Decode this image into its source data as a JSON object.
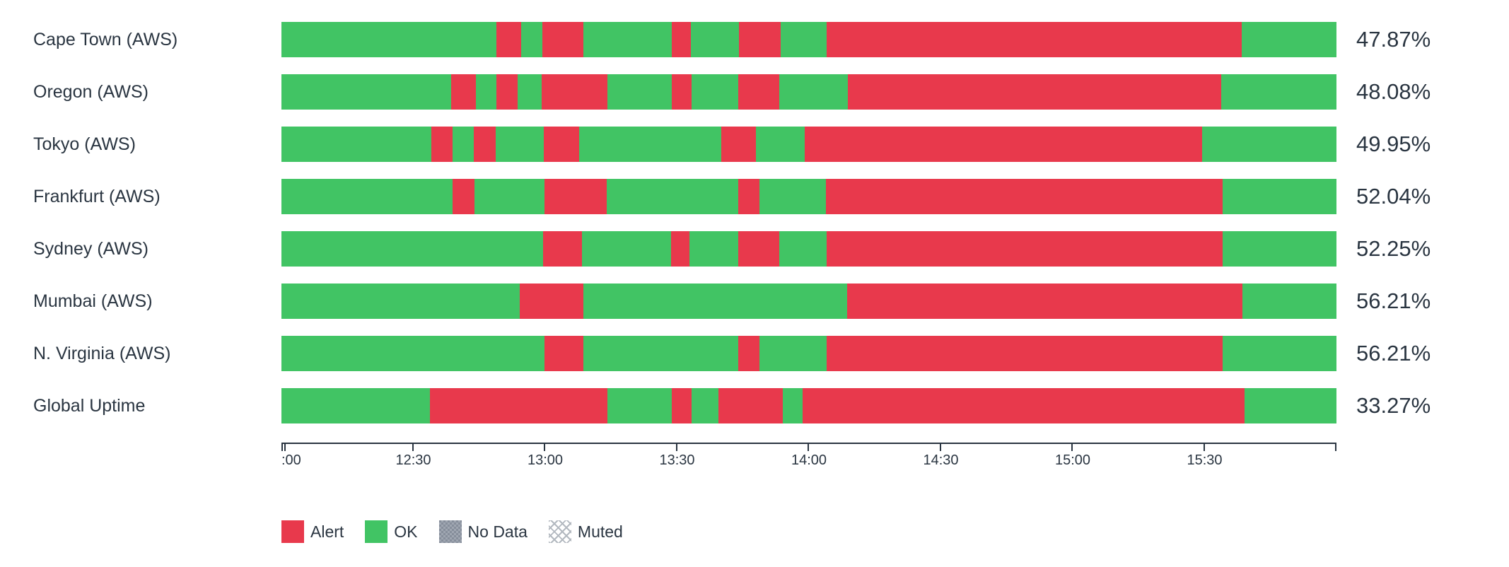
{
  "colors": {
    "alert": "#e8394c",
    "ok": "#41c464",
    "no_data": "#8a93a0",
    "muted": "#b3b9c0",
    "text": "#2a3541",
    "axis": "#2a3541",
    "background": "#ffffff"
  },
  "legend": {
    "items": [
      {
        "id": "alert",
        "label": "Alert"
      },
      {
        "id": "ok",
        "label": "OK"
      },
      {
        "id": "no_data",
        "label": "No Data"
      },
      {
        "id": "muted",
        "label": "Muted"
      }
    ]
  },
  "chart_data": {
    "type": "status-timeline",
    "time_range": {
      "start": "12:00",
      "end": "16:00"
    },
    "axis_tick_labels": [
      ":00",
      "12:30",
      "13:00",
      "13:30",
      "14:00",
      "14:30",
      "15:00",
      "15:30",
      ""
    ],
    "statuses": [
      "ok",
      "alert",
      "no_data",
      "muted"
    ],
    "rows": [
      {
        "label": "Cape Town (AWS)",
        "uptime": "47.87%",
        "segments": [
          {
            "status": "ok",
            "start": "12:00",
            "end": "12:49",
            "width_pct": 20.4
          },
          {
            "status": "alert",
            "start": "12:49",
            "end": "12:54",
            "width_pct": 2.3
          },
          {
            "status": "ok",
            "start": "12:54",
            "end": "12:59",
            "width_pct": 2.0
          },
          {
            "status": "alert",
            "start": "12:59",
            "end": "13:09",
            "width_pct": 3.9
          },
          {
            "status": "ok",
            "start": "13:09",
            "end": "13:29",
            "width_pct": 8.4
          },
          {
            "status": "alert",
            "start": "13:29",
            "end": "13:33",
            "width_pct": 1.8
          },
          {
            "status": "ok",
            "start": "13:33",
            "end": "13:44",
            "width_pct": 4.6
          },
          {
            "status": "alert",
            "start": "13:44",
            "end": "13:53",
            "width_pct": 3.9
          },
          {
            "status": "ok",
            "start": "13:53",
            "end": "14:04",
            "width_pct": 4.4
          },
          {
            "status": "alert",
            "start": "14:04",
            "end": "15:38",
            "width_pct": 39.3
          },
          {
            "status": "ok",
            "start": "15:38",
            "end": "16:00",
            "width_pct": 9.0
          }
        ]
      },
      {
        "label": "Oregon (AWS)",
        "uptime": "48.08%",
        "segments": [
          {
            "status": "ok",
            "start": "12:00",
            "end": "12:39",
            "width_pct": 16.1
          },
          {
            "status": "alert",
            "start": "12:39",
            "end": "12:44",
            "width_pct": 2.3
          },
          {
            "status": "ok",
            "start": "12:44",
            "end": "12:49",
            "width_pct": 2.0
          },
          {
            "status": "alert",
            "start": "12:49",
            "end": "12:54",
            "width_pct": 2.0
          },
          {
            "status": "ok",
            "start": "12:54",
            "end": "12:59",
            "width_pct": 2.3
          },
          {
            "status": "alert",
            "start": "12:59",
            "end": "13:14",
            "width_pct": 6.2
          },
          {
            "status": "ok",
            "start": "13:14",
            "end": "13:29",
            "width_pct": 6.1
          },
          {
            "status": "alert",
            "start": "13:29",
            "end": "13:33",
            "width_pct": 1.9
          },
          {
            "status": "ok",
            "start": "13:33",
            "end": "13:44",
            "width_pct": 4.4
          },
          {
            "status": "alert",
            "start": "13:44",
            "end": "13:53",
            "width_pct": 3.9
          },
          {
            "status": "ok",
            "start": "13:53",
            "end": "14:09",
            "width_pct": 6.5
          },
          {
            "status": "alert",
            "start": "14:09",
            "end": "15:34",
            "width_pct": 35.4
          },
          {
            "status": "ok",
            "start": "15:34",
            "end": "16:00",
            "width_pct": 10.9
          }
        ]
      },
      {
        "label": "Tokyo (AWS)",
        "uptime": "49.95%",
        "segments": [
          {
            "status": "ok",
            "start": "12:00",
            "end": "12:34",
            "width_pct": 14.2
          },
          {
            "status": "alert",
            "start": "12:34",
            "end": "12:39",
            "width_pct": 2.0
          },
          {
            "status": "ok",
            "start": "12:39",
            "end": "12:43",
            "width_pct": 2.0
          },
          {
            "status": "alert",
            "start": "12:43",
            "end": "12:48",
            "width_pct": 2.1
          },
          {
            "status": "ok",
            "start": "12:48",
            "end": "13:00",
            "width_pct": 4.6
          },
          {
            "status": "alert",
            "start": "13:00",
            "end": "13:07",
            "width_pct": 3.3
          },
          {
            "status": "ok",
            "start": "13:07",
            "end": "13:40",
            "width_pct": 13.5
          },
          {
            "status": "alert",
            "start": "13:40",
            "end": "13:48",
            "width_pct": 3.3
          },
          {
            "status": "ok",
            "start": "13:48",
            "end": "13:59",
            "width_pct": 4.6
          },
          {
            "status": "alert",
            "start": "13:59",
            "end": "15:29",
            "width_pct": 37.7
          },
          {
            "status": "ok",
            "start": "15:29",
            "end": "16:00",
            "width_pct": 12.7
          }
        ]
      },
      {
        "label": "Frankfurt (AWS)",
        "uptime": "52.04%",
        "segments": [
          {
            "status": "ok",
            "start": "12:00",
            "end": "12:39",
            "width_pct": 16.2
          },
          {
            "status": "alert",
            "start": "12:39",
            "end": "12:44",
            "width_pct": 2.1
          },
          {
            "status": "ok",
            "start": "12:44",
            "end": "13:00",
            "width_pct": 6.6
          },
          {
            "status": "alert",
            "start": "13:00",
            "end": "13:14",
            "width_pct": 5.9
          },
          {
            "status": "ok",
            "start": "13:14",
            "end": "13:44",
            "width_pct": 12.5
          },
          {
            "status": "alert",
            "start": "13:44",
            "end": "13:49",
            "width_pct": 2.0
          },
          {
            "status": "ok",
            "start": "13:49",
            "end": "14:04",
            "width_pct": 6.3
          },
          {
            "status": "alert",
            "start": "14:04",
            "end": "15:34",
            "width_pct": 37.6
          },
          {
            "status": "ok",
            "start": "15:34",
            "end": "16:00",
            "width_pct": 10.8
          }
        ]
      },
      {
        "label": "Sydney (AWS)",
        "uptime": "52.25%",
        "segments": [
          {
            "status": "ok",
            "start": "12:00",
            "end": "13:00",
            "width_pct": 24.8
          },
          {
            "status": "alert",
            "start": "13:00",
            "end": "13:09",
            "width_pct": 3.7
          },
          {
            "status": "ok",
            "start": "13:09",
            "end": "13:29",
            "width_pct": 8.4
          },
          {
            "status": "alert",
            "start": "13:29",
            "end": "13:33",
            "width_pct": 1.8
          },
          {
            "status": "ok",
            "start": "13:33",
            "end": "13:44",
            "width_pct": 4.6
          },
          {
            "status": "alert",
            "start": "13:44",
            "end": "13:53",
            "width_pct": 3.9
          },
          {
            "status": "ok",
            "start": "13:53",
            "end": "14:04",
            "width_pct": 4.5
          },
          {
            "status": "alert",
            "start": "14:04",
            "end": "15:34",
            "width_pct": 37.5
          },
          {
            "status": "ok",
            "start": "15:34",
            "end": "16:00",
            "width_pct": 10.8
          }
        ]
      },
      {
        "label": "Mumbai (AWS)",
        "uptime": "56.21%",
        "segments": [
          {
            "status": "ok",
            "start": "12:00",
            "end": "12:54",
            "width_pct": 22.6
          },
          {
            "status": "alert",
            "start": "12:54",
            "end": "13:09",
            "width_pct": 6.0
          },
          {
            "status": "ok",
            "start": "13:09",
            "end": "14:09",
            "width_pct": 25.0
          },
          {
            "status": "alert",
            "start": "14:09",
            "end": "15:39",
            "width_pct": 37.5
          },
          {
            "status": "ok",
            "start": "15:39",
            "end": "16:00",
            "width_pct": 8.9
          }
        ]
      },
      {
        "label": "N. Virginia (AWS)",
        "uptime": "56.21%",
        "segments": [
          {
            "status": "ok",
            "start": "12:00",
            "end": "13:00",
            "width_pct": 24.9
          },
          {
            "status": "alert",
            "start": "13:00",
            "end": "13:09",
            "width_pct": 3.7
          },
          {
            "status": "ok",
            "start": "13:09",
            "end": "13:44",
            "width_pct": 14.7
          },
          {
            "status": "alert",
            "start": "13:44",
            "end": "13:49",
            "width_pct": 2.0
          },
          {
            "status": "ok",
            "start": "13:49",
            "end": "14:04",
            "width_pct": 6.4
          },
          {
            "status": "alert",
            "start": "14:04",
            "end": "15:34",
            "width_pct": 37.5
          },
          {
            "status": "ok",
            "start": "15:34",
            "end": "16:00",
            "width_pct": 10.8
          }
        ]
      },
      {
        "label": "Global Uptime",
        "uptime": "33.27%",
        "segments": [
          {
            "status": "ok",
            "start": "12:00",
            "end": "12:34",
            "width_pct": 14.1
          },
          {
            "status": "alert",
            "start": "12:34",
            "end": "13:14",
            "width_pct": 16.8
          },
          {
            "status": "ok",
            "start": "13:14",
            "end": "13:29",
            "width_pct": 6.1
          },
          {
            "status": "alert",
            "start": "13:29",
            "end": "13:33",
            "width_pct": 1.9
          },
          {
            "status": "ok",
            "start": "13:33",
            "end": "13:39",
            "width_pct": 2.5
          },
          {
            "status": "alert",
            "start": "13:39",
            "end": "13:54",
            "width_pct": 6.1
          },
          {
            "status": "ok",
            "start": "13:54",
            "end": "13:58",
            "width_pct": 1.9
          },
          {
            "status": "alert",
            "start": "13:58",
            "end": "15:39",
            "width_pct": 41.9
          },
          {
            "status": "ok",
            "start": "15:39",
            "end": "16:00",
            "width_pct": 8.7
          }
        ]
      }
    ]
  }
}
